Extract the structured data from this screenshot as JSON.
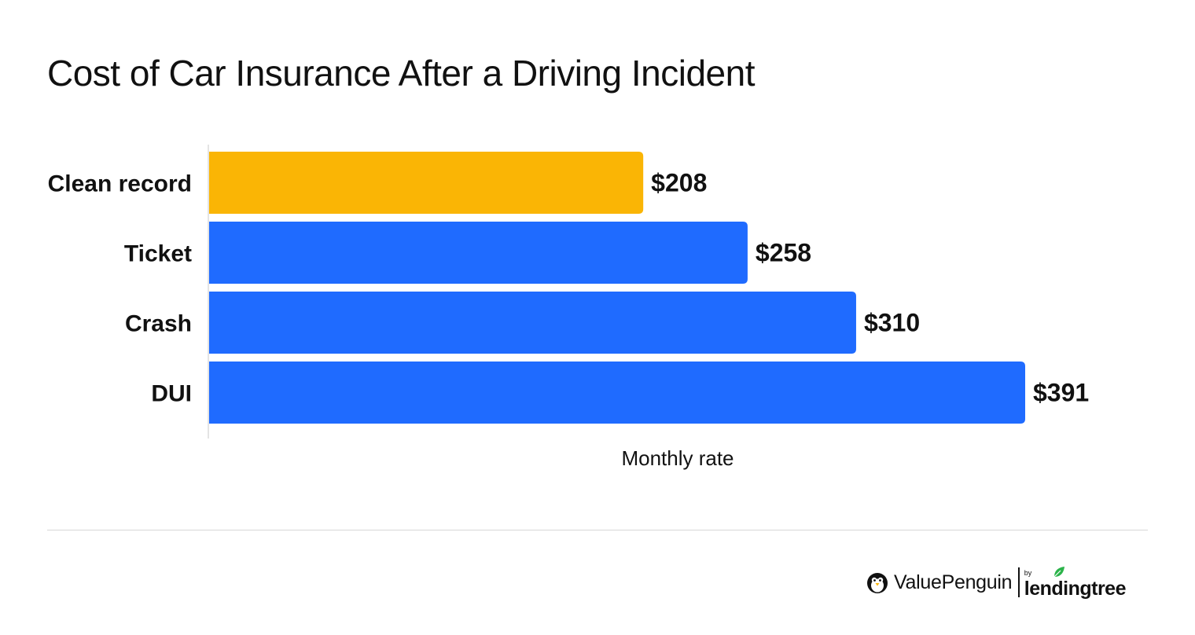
{
  "header": {
    "title": "Cost of Car Insurance After a Driving Incident"
  },
  "chart_data": {
    "type": "bar",
    "orientation": "horizontal",
    "categories": [
      "Clean record",
      "Ticket",
      "Crash",
      "DUI"
    ],
    "values": [
      208,
      258,
      310,
      391
    ],
    "value_labels": [
      "$208",
      "$258",
      "$310",
      "$391"
    ],
    "colors": [
      "#fab505",
      "#1f6bff",
      "#1f6bff",
      "#1f6bff"
    ],
    "xlabel": "Monthly rate",
    "ylabel": "",
    "xlim": [
      0,
      391
    ],
    "grid": false,
    "legend": "none"
  },
  "footer": {
    "brand": "ValuePenguin",
    "by": "by",
    "partner": "lendingtree",
    "icons": [
      "penguin-icon",
      "leaf-icon"
    ]
  }
}
